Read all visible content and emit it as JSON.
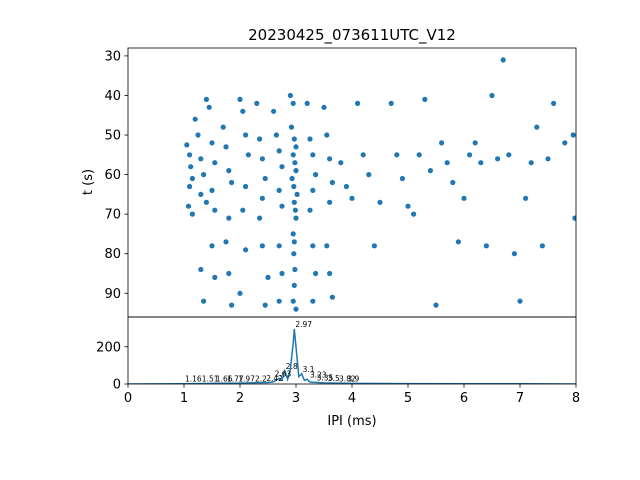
{
  "chart_data": [
    {
      "type": "scatter",
      "title": "20230425_073611UTC_V12",
      "xlabel": "",
      "ylabel": "t (s)",
      "xlim": [
        0,
        8
      ],
      "ylim": [
        96,
        28
      ],
      "y_inverted": true,
      "yticks": [
        30,
        40,
        50,
        60,
        70,
        80,
        90
      ],
      "color": "#1f77b4",
      "points_sample": [
        [
          1.05,
          52.5
        ],
        [
          1.1,
          55
        ],
        [
          1.12,
          58
        ],
        [
          1.15,
          61
        ],
        [
          1.1,
          63
        ],
        [
          1.08,
          68
        ],
        [
          1.15,
          70
        ],
        [
          1.2,
          46
        ],
        [
          1.25,
          50
        ],
        [
          1.3,
          56
        ],
        [
          1.35,
          60
        ],
        [
          1.3,
          65
        ],
        [
          1.4,
          67
        ],
        [
          1.3,
          84
        ],
        [
          1.35,
          92
        ],
        [
          1.4,
          41
        ],
        [
          1.45,
          43
        ],
        [
          1.5,
          52
        ],
        [
          1.55,
          57
        ],
        [
          1.5,
          64
        ],
        [
          1.55,
          69
        ],
        [
          1.5,
          78
        ],
        [
          1.55,
          86
        ],
        [
          1.7,
          48
        ],
        [
          1.75,
          53
        ],
        [
          1.8,
          59
        ],
        [
          1.85,
          62
        ],
        [
          1.8,
          71
        ],
        [
          1.75,
          77
        ],
        [
          1.8,
          85
        ],
        [
          1.85,
          93
        ],
        [
          2.0,
          41
        ],
        [
          2.05,
          44
        ],
        [
          2.1,
          50
        ],
        [
          2.15,
          55
        ],
        [
          2.1,
          63
        ],
        [
          2.05,
          69
        ],
        [
          2.1,
          79
        ],
        [
          2.0,
          90
        ],
        [
          2.3,
          42
        ],
        [
          2.35,
          51
        ],
        [
          2.4,
          56
        ],
        [
          2.45,
          61
        ],
        [
          2.4,
          66
        ],
        [
          2.35,
          71
        ],
        [
          2.4,
          78
        ],
        [
          2.5,
          86
        ],
        [
          2.45,
          93
        ],
        [
          2.6,
          44
        ],
        [
          2.65,
          50
        ],
        [
          2.7,
          54
        ],
        [
          2.75,
          58
        ],
        [
          2.7,
          64
        ],
        [
          2.75,
          68
        ],
        [
          2.7,
          78
        ],
        [
          2.75,
          85
        ],
        [
          2.7,
          92
        ],
        [
          2.9,
          40
        ],
        [
          2.95,
          42
        ],
        [
          2.92,
          48
        ],
        [
          2.97,
          51
        ],
        [
          3.0,
          53
        ],
        [
          2.95,
          55
        ],
        [
          2.98,
          57
        ],
        [
          3.0,
          59
        ],
        [
          2.93,
          61
        ],
        [
          2.96,
          63
        ],
        [
          3.02,
          65
        ],
        [
          2.97,
          67
        ],
        [
          2.99,
          69
        ],
        [
          3.0,
          71
        ],
        [
          2.95,
          75
        ],
        [
          2.97,
          77
        ],
        [
          2.96,
          80
        ],
        [
          2.98,
          84
        ],
        [
          2.97,
          88
        ],
        [
          2.95,
          92
        ],
        [
          3.0,
          94
        ],
        [
          3.2,
          42
        ],
        [
          3.25,
          51
        ],
        [
          3.3,
          55
        ],
        [
          3.35,
          60
        ],
        [
          3.3,
          64
        ],
        [
          3.25,
          69
        ],
        [
          3.3,
          78
        ],
        [
          3.35,
          85
        ],
        [
          3.3,
          92
        ],
        [
          3.5,
          43
        ],
        [
          3.55,
          50
        ],
        [
          3.6,
          56
        ],
        [
          3.65,
          62
        ],
        [
          3.6,
          67
        ],
        [
          3.55,
          78
        ],
        [
          3.6,
          85
        ],
        [
          3.65,
          91
        ],
        [
          3.8,
          57
        ],
        [
          3.9,
          63
        ],
        [
          4.0,
          66
        ],
        [
          4.1,
          42
        ],
        [
          4.2,
          55
        ],
        [
          4.3,
          60
        ],
        [
          4.4,
          78
        ],
        [
          4.5,
          67
        ],
        [
          4.7,
          42
        ],
        [
          4.8,
          55
        ],
        [
          4.9,
          61
        ],
        [
          5.0,
          68
        ],
        [
          5.1,
          70
        ],
        [
          5.2,
          55
        ],
        [
          5.3,
          41
        ],
        [
          5.4,
          59
        ],
        [
          5.5,
          93
        ],
        [
          5.6,
          52
        ],
        [
          5.7,
          57
        ],
        [
          5.8,
          62
        ],
        [
          5.9,
          77
        ],
        [
          6.0,
          66
        ],
        [
          6.1,
          55
        ],
        [
          6.2,
          52
        ],
        [
          6.3,
          57
        ],
        [
          6.4,
          78
        ],
        [
          6.5,
          40
        ],
        [
          6.6,
          56
        ],
        [
          6.7,
          31
        ],
        [
          6.8,
          55
        ],
        [
          6.9,
          80
        ],
        [
          7.0,
          92
        ],
        [
          7.1,
          66
        ],
        [
          7.2,
          57
        ],
        [
          7.3,
          48
        ],
        [
          7.4,
          78
        ],
        [
          7.5,
          56
        ],
        [
          7.6,
          42
        ],
        [
          7.8,
          52
        ],
        [
          7.95,
          50
        ],
        [
          7.98,
          71
        ]
      ]
    },
    {
      "type": "line",
      "xlabel": "IPI (ms)",
      "ylabel": "",
      "xlim": [
        0,
        8
      ],
      "ylim": [
        0,
        360
      ],
      "xticks": [
        0,
        1,
        2,
        3,
        4,
        5,
        6,
        7,
        8
      ],
      "yticks": [
        0,
        200
      ],
      "color": "#1f77b4",
      "x": [
        0,
        1.0,
        1.5,
        2.0,
        2.5,
        2.6,
        2.7,
        2.75,
        2.8,
        2.85,
        2.9,
        2.95,
        2.97,
        3.0,
        3.05,
        3.1,
        3.15,
        3.2,
        3.25,
        3.5,
        4.0,
        5.0,
        6.0,
        7.0,
        8.0
      ],
      "y": [
        0,
        1,
        3,
        5,
        8,
        12,
        30,
        20,
        70,
        25,
        80,
        220,
        295,
        200,
        40,
        55,
        20,
        25,
        10,
        6,
        3,
        2,
        1,
        1,
        0
      ],
      "peak_labels": [
        {
          "x": 1.0,
          "y": 2,
          "text": "1.16"
        },
        {
          "x": 1.3,
          "y": 2,
          "text": "1.51"
        },
        {
          "x": 1.55,
          "y": 2,
          "text": "1.66"
        },
        {
          "x": 1.75,
          "y": 2,
          "text": "1.77"
        },
        {
          "x": 1.95,
          "y": 2,
          "text": "1.97"
        },
        {
          "x": 2.25,
          "y": 4,
          "text": "2.2"
        },
        {
          "x": 2.45,
          "y": 6,
          "text": "2.42"
        },
        {
          "x": 2.6,
          "y": 30,
          "text": "2.63"
        },
        {
          "x": 2.8,
          "y": 70,
          "text": "2.8"
        },
        {
          "x": 2.97,
          "y": 295,
          "text": "2.97"
        },
        {
          "x": 3.1,
          "y": 55,
          "text": "3.1"
        },
        {
          "x": 3.23,
          "y": 25,
          "text": "3.23"
        },
        {
          "x": 3.35,
          "y": 8,
          "text": "3.35"
        },
        {
          "x": 3.55,
          "y": 6,
          "text": "3.5"
        },
        {
          "x": 3.75,
          "y": 4,
          "text": "3.82"
        },
        {
          "x": 3.9,
          "y": 4,
          "text": "3.9"
        }
      ]
    }
  ]
}
